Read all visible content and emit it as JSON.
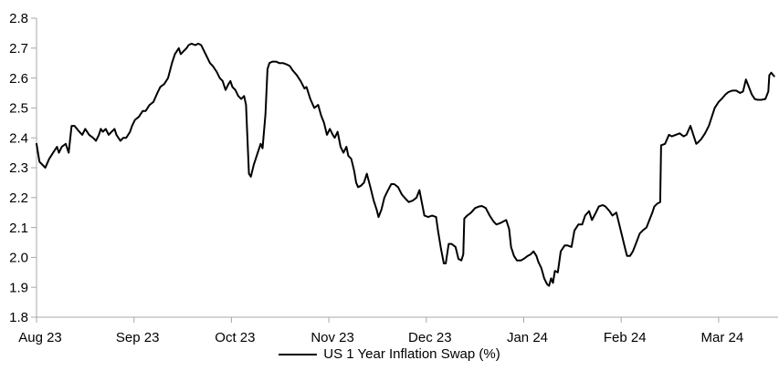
{
  "page": {
    "background": "#ffffff"
  },
  "chart_data": {
    "type": "line",
    "title": "",
    "legend_label": "US 1 Year Inflation Swap (%)",
    "legend_position": "bottom-center",
    "grid": false,
    "axis_color": "#a8a8a8",
    "text_color": "#000000",
    "line_color": "#000000",
    "x_tick_labels": [
      "Aug 23",
      "Sep 23",
      "Oct 23",
      "Nov 23",
      "Dec 23",
      "Jan 24",
      "Feb 24",
      "Mar 24"
    ],
    "x_unit": "months since Aug 23 tick (0 = Aug 23, 7 = Mar 24)",
    "x_range": [
      0,
      7.61
    ],
    "ylim": [
      1.8,
      2.8
    ],
    "y_ticks": [
      1.8,
      1.9,
      2.0,
      2.1,
      2.2,
      2.3,
      2.4,
      2.5,
      2.6,
      2.7,
      2.8
    ],
    "series": [
      {
        "name": "US 1 Year Inflation Swap (%)",
        "color": "#000000",
        "points": [
          [
            0,
            2.38
          ],
          [
            0.03,
            2.32
          ],
          [
            0.06,
            2.31
          ],
          [
            0.09,
            2.3
          ],
          [
            0.13,
            2.33
          ],
          [
            0.17,
            2.35
          ],
          [
            0.21,
            2.37
          ],
          [
            0.23,
            2.35
          ],
          [
            0.26,
            2.37
          ],
          [
            0.3,
            2.38
          ],
          [
            0.33,
            2.35
          ],
          [
            0.36,
            2.44
          ],
          [
            0.39,
            2.44
          ],
          [
            0.44,
            2.42
          ],
          [
            0.47,
            2.41
          ],
          [
            0.5,
            2.43
          ],
          [
            0.54,
            2.41
          ],
          [
            0.58,
            2.4
          ],
          [
            0.61,
            2.39
          ],
          [
            0.64,
            2.41
          ],
          [
            0.66,
            2.43
          ],
          [
            0.68,
            2.42
          ],
          [
            0.71,
            2.43
          ],
          [
            0.74,
            2.41
          ],
          [
            0.77,
            2.42
          ],
          [
            0.8,
            2.43
          ],
          [
            0.82,
            2.41
          ],
          [
            0.86,
            2.39
          ],
          [
            0.89,
            2.4
          ],
          [
            0.92,
            2.4
          ],
          [
            0.96,
            2.42
          ],
          [
            0.98,
            2.44
          ],
          [
            1.01,
            2.46
          ],
          [
            1.05,
            2.47
          ],
          [
            1.09,
            2.49
          ],
          [
            1.12,
            2.49
          ],
          [
            1.16,
            2.51
          ],
          [
            1.2,
            2.52
          ],
          [
            1.24,
            2.55
          ],
          [
            1.27,
            2.57
          ],
          [
            1.31,
            2.58
          ],
          [
            1.35,
            2.6
          ],
          [
            1.39,
            2.65
          ],
          [
            1.42,
            2.68
          ],
          [
            1.46,
            2.7
          ],
          [
            1.48,
            2.68
          ],
          [
            1.51,
            2.69
          ],
          [
            1.54,
            2.7
          ],
          [
            1.56,
            2.71
          ],
          [
            1.59,
            2.715
          ],
          [
            1.63,
            2.71
          ],
          [
            1.66,
            2.715
          ],
          [
            1.69,
            2.71
          ],
          [
            1.72,
            2.69
          ],
          [
            1.75,
            2.67
          ],
          [
            1.78,
            2.65
          ],
          [
            1.81,
            2.64
          ],
          [
            1.85,
            2.62
          ],
          [
            1.88,
            2.6
          ],
          [
            1.91,
            2.59
          ],
          [
            1.94,
            2.56
          ],
          [
            1.97,
            2.58
          ],
          [
            1.99,
            2.59
          ],
          [
            2.01,
            2.57
          ],
          [
            2.04,
            2.56
          ],
          [
            2.07,
            2.54
          ],
          [
            2.1,
            2.53
          ],
          [
            2.13,
            2.54
          ],
          [
            2.15,
            2.51
          ],
          [
            2.16,
            2.43
          ],
          [
            2.18,
            2.28
          ],
          [
            2.2,
            2.27
          ],
          [
            2.23,
            2.31
          ],
          [
            2.26,
            2.34
          ],
          [
            2.3,
            2.38
          ],
          [
            2.32,
            2.365
          ],
          [
            2.35,
            2.48
          ],
          [
            2.37,
            2.63
          ],
          [
            2.39,
            2.65
          ],
          [
            2.42,
            2.655
          ],
          [
            2.46,
            2.655
          ],
          [
            2.49,
            2.65
          ],
          [
            2.53,
            2.65
          ],
          [
            2.57,
            2.645
          ],
          [
            2.6,
            2.64
          ],
          [
            2.63,
            2.625
          ],
          [
            2.67,
            2.61
          ],
          [
            2.71,
            2.59
          ],
          [
            2.75,
            2.565
          ],
          [
            2.77,
            2.57
          ],
          [
            2.81,
            2.53
          ],
          [
            2.85,
            2.5
          ],
          [
            2.89,
            2.51
          ],
          [
            2.92,
            2.475
          ],
          [
            2.95,
            2.45
          ],
          [
            2.98,
            2.41
          ],
          [
            3.01,
            2.43
          ],
          [
            3.04,
            2.41
          ],
          [
            3.06,
            2.4
          ],
          [
            3.09,
            2.42
          ],
          [
            3.12,
            2.37
          ],
          [
            3.15,
            2.35
          ],
          [
            3.18,
            2.37
          ],
          [
            3.2,
            2.34
          ],
          [
            3.23,
            2.33
          ],
          [
            3.26,
            2.29
          ],
          [
            3.28,
            2.25
          ],
          [
            3.3,
            2.235
          ],
          [
            3.33,
            2.24
          ],
          [
            3.36,
            2.25
          ],
          [
            3.39,
            2.28
          ],
          [
            3.43,
            2.23
          ],
          [
            3.46,
            2.19
          ],
          [
            3.49,
            2.16
          ],
          [
            3.51,
            2.135
          ],
          [
            3.54,
            2.16
          ],
          [
            3.57,
            2.2
          ],
          [
            3.6,
            2.22
          ],
          [
            3.64,
            2.245
          ],
          [
            3.67,
            2.245
          ],
          [
            3.71,
            2.235
          ],
          [
            3.75,
            2.21
          ],
          [
            3.79,
            2.195
          ],
          [
            3.82,
            2.185
          ],
          [
            3.86,
            2.19
          ],
          [
            3.9,
            2.2
          ],
          [
            3.93,
            2.225
          ],
          [
            3.95,
            2.19
          ],
          [
            3.98,
            2.14
          ],
          [
            4.02,
            2.135
          ],
          [
            4.06,
            2.14
          ],
          [
            4.1,
            2.135
          ],
          [
            4.12,
            2.09
          ],
          [
            4.15,
            2.03
          ],
          [
            4.18,
            1.98
          ],
          [
            4.2,
            1.98
          ],
          [
            4.23,
            2.045
          ],
          [
            4.26,
            2.045
          ],
          [
            4.3,
            2.035
          ],
          [
            4.33,
            1.995
          ],
          [
            4.36,
            1.99
          ],
          [
            4.38,
            2.01
          ],
          [
            4.39,
            2.13
          ],
          [
            4.42,
            2.14
          ],
          [
            4.46,
            2.15
          ],
          [
            4.5,
            2.165
          ],
          [
            4.54,
            2.17
          ],
          [
            4.57,
            2.172
          ],
          [
            4.61,
            2.165
          ],
          [
            4.65,
            2.14
          ],
          [
            4.69,
            2.12
          ],
          [
            4.72,
            2.11
          ],
          [
            4.76,
            2.115
          ],
          [
            4.79,
            2.12
          ],
          [
            4.82,
            2.125
          ],
          [
            4.85,
            2.095
          ],
          [
            4.87,
            2.035
          ],
          [
            4.9,
            2.005
          ],
          [
            4.93,
            1.99
          ],
          [
            4.97,
            1.99
          ],
          [
            5.0,
            1.995
          ],
          [
            5.04,
            2.005
          ],
          [
            5.07,
            2.01
          ],
          [
            5.1,
            2.02
          ],
          [
            5.13,
            2.005
          ],
          [
            5.15,
            1.985
          ],
          [
            5.18,
            1.965
          ],
          [
            5.21,
            1.93
          ],
          [
            5.24,
            1.91
          ],
          [
            5.26,
            1.905
          ],
          [
            5.28,
            1.93
          ],
          [
            5.3,
            1.915
          ],
          [
            5.32,
            1.955
          ],
          [
            5.35,
            1.95
          ],
          [
            5.38,
            2.02
          ],
          [
            5.42,
            2.04
          ],
          [
            5.45,
            2.04
          ],
          [
            5.49,
            2.035
          ],
          [
            5.52,
            2.09
          ],
          [
            5.56,
            2.11
          ],
          [
            5.6,
            2.11
          ],
          [
            5.63,
            2.14
          ],
          [
            5.67,
            2.155
          ],
          [
            5.7,
            2.125
          ],
          [
            5.74,
            2.15
          ],
          [
            5.77,
            2.17
          ],
          [
            5.81,
            2.175
          ],
          [
            5.84,
            2.17
          ],
          [
            5.88,
            2.155
          ],
          [
            5.91,
            2.14
          ],
          [
            5.95,
            2.15
          ],
          [
            5.98,
            2.11
          ],
          [
            6.01,
            2.07
          ],
          [
            6.04,
            2.03
          ],
          [
            6.06,
            2.005
          ],
          [
            6.09,
            2.005
          ],
          [
            6.12,
            2.02
          ],
          [
            6.15,
            2.045
          ],
          [
            6.19,
            2.08
          ],
          [
            6.22,
            2.09
          ],
          [
            6.26,
            2.1
          ],
          [
            6.29,
            2.125
          ],
          [
            6.32,
            2.15
          ],
          [
            6.34,
            2.17
          ],
          [
            6.37,
            2.18
          ],
          [
            6.4,
            2.185
          ],
          [
            6.41,
            2.375
          ],
          [
            6.45,
            2.38
          ],
          [
            6.49,
            2.41
          ],
          [
            6.52,
            2.405
          ],
          [
            6.56,
            2.41
          ],
          [
            6.6,
            2.415
          ],
          [
            6.64,
            2.405
          ],
          [
            6.67,
            2.41
          ],
          [
            6.71,
            2.44
          ],
          [
            6.74,
            2.41
          ],
          [
            6.77,
            2.38
          ],
          [
            6.79,
            2.385
          ],
          [
            6.82,
            2.395
          ],
          [
            6.86,
            2.415
          ],
          [
            6.9,
            2.44
          ],
          [
            6.93,
            2.47
          ],
          [
            6.96,
            2.5
          ],
          [
            7.0,
            2.52
          ],
          [
            7.03,
            2.53
          ],
          [
            7.07,
            2.545
          ],
          [
            7.1,
            2.553
          ],
          [
            7.14,
            2.558
          ],
          [
            7.18,
            2.558
          ],
          [
            7.22,
            2.55
          ],
          [
            7.25,
            2.555
          ],
          [
            7.28,
            2.595
          ],
          [
            7.31,
            2.57
          ],
          [
            7.34,
            2.545
          ],
          [
            7.37,
            2.53
          ],
          [
            7.4,
            2.527
          ],
          [
            7.44,
            2.527
          ],
          [
            7.48,
            2.53
          ],
          [
            7.51,
            2.555
          ],
          [
            7.52,
            2.609
          ],
          [
            7.54,
            2.618
          ],
          [
            7.57,
            2.606
          ]
        ]
      }
    ]
  }
}
